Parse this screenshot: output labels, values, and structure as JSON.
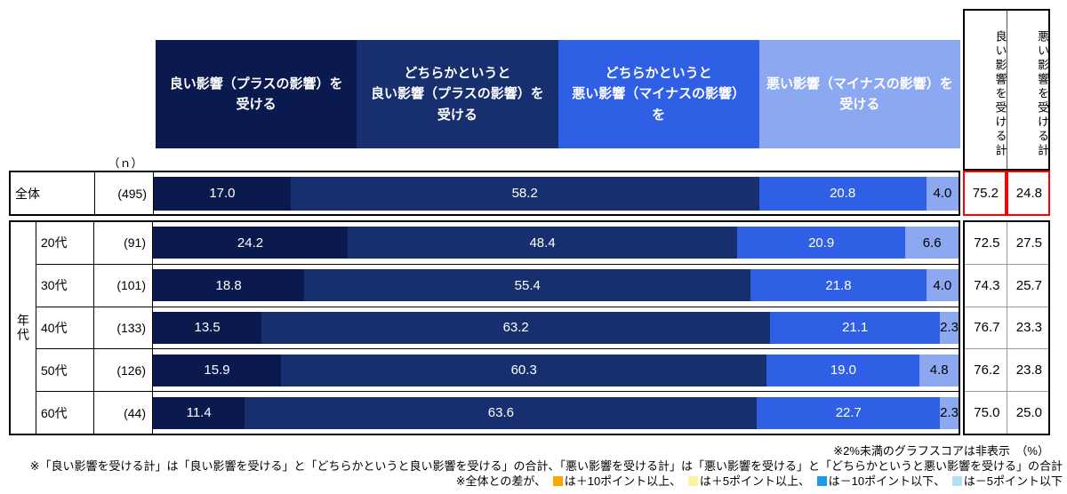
{
  "chart_data": {
    "type": "bar",
    "orientation": "horizontal",
    "stacked": true,
    "unit": "%",
    "xlim": [
      0,
      100
    ],
    "grid": false,
    "categories": [
      "全体",
      "20代",
      "30代",
      "40代",
      "50代",
      "60代"
    ],
    "n": [
      495,
      91,
      101,
      133,
      126,
      44
    ],
    "series": [
      {
        "name": "良い影響（プラスの影響）を受ける",
        "color": "#0b1a4e",
        "values": [
          17.0,
          24.2,
          18.8,
          13.5,
          15.9,
          11.4
        ]
      },
      {
        "name": "どちらかというと良い影響（プラスの影響）を受ける",
        "color": "#172f6e",
        "values": [
          58.2,
          48.4,
          55.4,
          63.2,
          60.3,
          63.6
        ]
      },
      {
        "name": "どちらかというと悪い影響（マイナスの影響）を受ける",
        "color": "#2e5fe4",
        "values": [
          20.8,
          20.9,
          21.8,
          21.1,
          19.0,
          22.7
        ]
      },
      {
        "name": "悪い影響（マイナスの影響）を受ける",
        "color": "#8ca8f0",
        "values": [
          4.0,
          6.6,
          4.0,
          2.3,
          4.8,
          2.3
        ]
      }
    ],
    "totals": {
      "good": [
        75.2,
        72.5,
        74.3,
        76.7,
        76.2,
        75.0
      ],
      "bad": [
        24.8,
        27.5,
        25.7,
        23.3,
        23.8,
        25.0
      ]
    }
  },
  "ui": {
    "legend_labels": [
      "良い影響（プラスの影響）を\n受ける",
      "どちらかというと\n良い影響（プラスの影響）を\n受ける",
      "どちらかというと\n悪い影響（マイナスの影響）\nを",
      "悪い影響（マイナスの影響）を\n受ける"
    ],
    "total_headers": [
      "良い影響を受ける計",
      "悪い影響を受ける計"
    ],
    "n_header": "（ｎ）",
    "group_label": "年代",
    "overall_label": "全体",
    "notes": {
      "note1": "※2%未満のグラフスコアは非表示　（%）",
      "note2": "※「良い影響を受ける計」は「良い影響を受ける」と「どちらかというと良い影響を受ける」の合計、「悪い影響を受ける計」は「悪い影響を受ける」と「どちらかというと悪い影響を受ける」の合計",
      "note3_prefix": "※全体との差が、",
      "diff_items": [
        {
          "text": "は＋10ポイント以上、",
          "color": "#ffa500"
        },
        {
          "text": "は＋5ポイント以上、",
          "color": "#fbf3a3"
        },
        {
          "text": "は－10ポイント以下、",
          "color": "#1d9be8"
        },
        {
          "text": "は－5ポイント以下",
          "color": "#b5dff7"
        }
      ]
    },
    "highlight_border_color": "#ff0000"
  }
}
